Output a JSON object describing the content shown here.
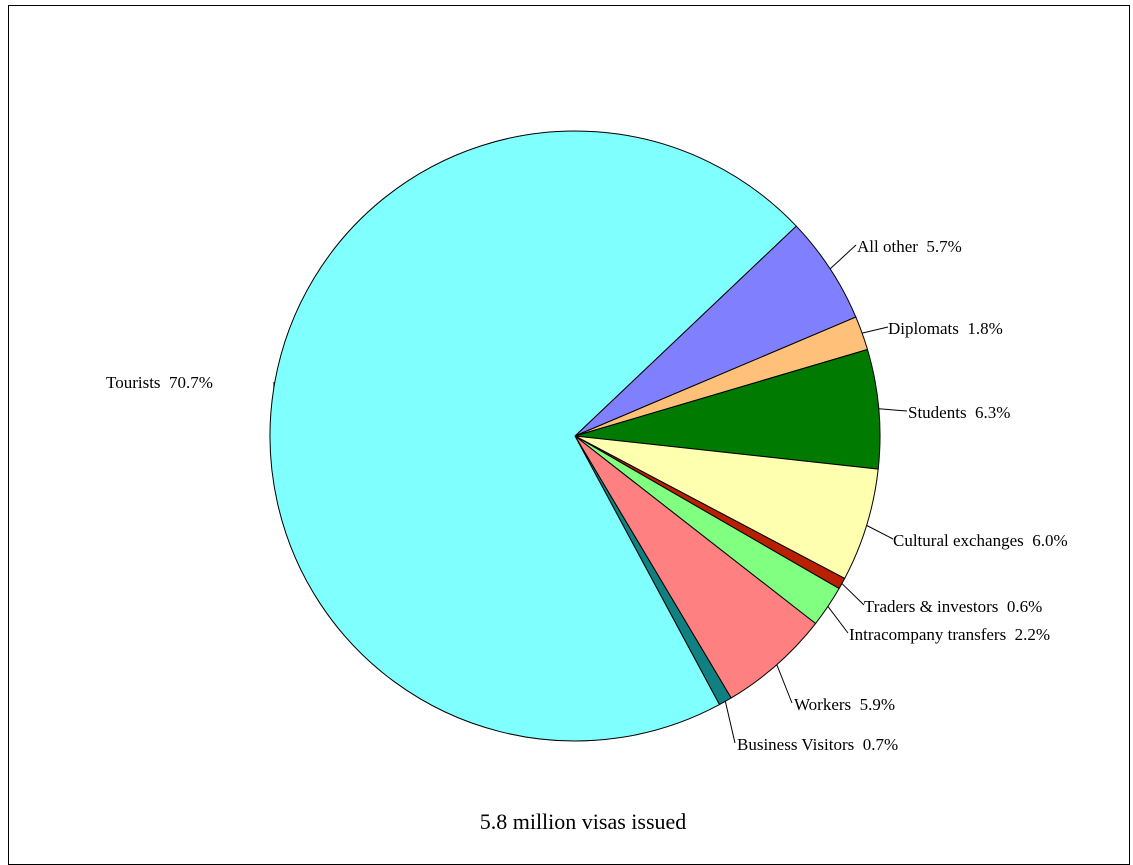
{
  "chart_data": {
    "type": "pie",
    "caption": "5.8 million visas issued",
    "slices": [
      {
        "label": "All other",
        "pct_text": "5.7%",
        "value": 5.7,
        "color": "#8080ff"
      },
      {
        "label": "Diplomats",
        "pct_text": "1.8%",
        "value": 1.8,
        "color": "#ffc07a"
      },
      {
        "label": "Students",
        "pct_text": "6.3%",
        "value": 6.3,
        "color": "#007a00"
      },
      {
        "label": "Cultural exchanges",
        "pct_text": "6.0%",
        "value": 6.0,
        "color": "#ffffb0"
      },
      {
        "label": "Traders & investors",
        "pct_text": "0.6%",
        "value": 0.6,
        "color": "#b82000"
      },
      {
        "label": "Intracompany transfers",
        "pct_text": "2.2%",
        "value": 2.2,
        "color": "#80ff80"
      },
      {
        "label": "Workers",
        "pct_text": "5.9%",
        "value": 5.9,
        "color": "#ff8080"
      },
      {
        "label": "Business Visitors",
        "pct_text": "0.7%",
        "value": 0.7,
        "color": "#108080"
      },
      {
        "label": "Tourists",
        "pct_text": "70.7%",
        "value": 70.7,
        "color": "#80ffff"
      }
    ]
  }
}
